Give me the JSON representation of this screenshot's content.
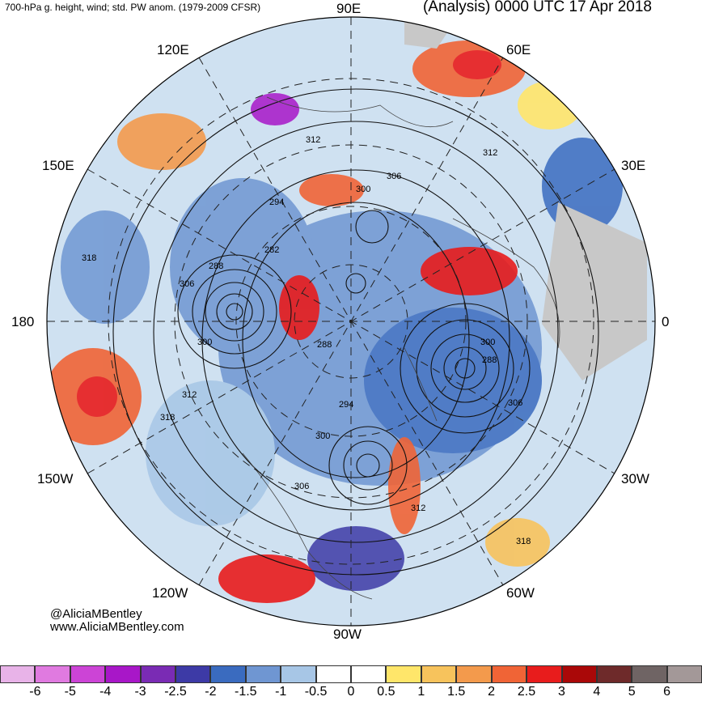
{
  "title_left": "700-hPa g. height, wind; std. PW anom. (1979-2009 CFSR)",
  "title_right": "(Analysis) 0000 UTC 17 Apr 2018",
  "longitude_labels": {
    "lon_90e": "90E",
    "lon_60e": "60E",
    "lon_120e": "120E",
    "lon_150e": "150E",
    "lon_30e": "30E",
    "lon_180": "180",
    "lon_0": "0",
    "lon_150w": "150W",
    "lon_30w": "30W",
    "lon_120w": "120W",
    "lon_60w": "60W",
    "lon_90w": "90W"
  },
  "contour_labels": {
    "c312_top": "312",
    "c306_top": "306",
    "c300_top": "300",
    "c294_top": "294",
    "c312_ne": "312",
    "c318_w": "318",
    "c282": "282",
    "c288_w": "288",
    "c306_w": "306",
    "c300_w": "300",
    "c288_center": "288",
    "c312_sw": "312",
    "c318_sw": "318",
    "c294_center": "294",
    "c300_lower": "300",
    "c306_lower": "306",
    "c300_e": "300",
    "c288_e": "288",
    "c306_e": "306",
    "c312_se": "312",
    "c318_se": "318"
  },
  "credit_handle": "@AliciaMBentley",
  "credit_url": "www.AliciaMBentley.com",
  "colorbar": {
    "colors": [
      "#e8b3e8",
      "#e07ae0",
      "#cc44d6",
      "#a817c8",
      "#7a2bb4",
      "#3d3aa6",
      "#3a6bbf",
      "#6f96d2",
      "#a7c6e6",
      "#ffffff",
      "#ffffff",
      "#ffe66a",
      "#f7c35c",
      "#f39a4c",
      "#f06436",
      "#e81c1c",
      "#aa0808",
      "#6e2a2a",
      "#6f6464",
      "#a39898"
    ],
    "ticks": [
      "-6",
      "-5",
      "-4",
      "-3",
      "-2.5",
      "-2",
      "-1.5",
      "-1",
      "-0.5",
      "0",
      "0.5",
      "1",
      "1.5",
      "2",
      "2.5",
      "3",
      "4",
      "5",
      "6"
    ]
  }
}
